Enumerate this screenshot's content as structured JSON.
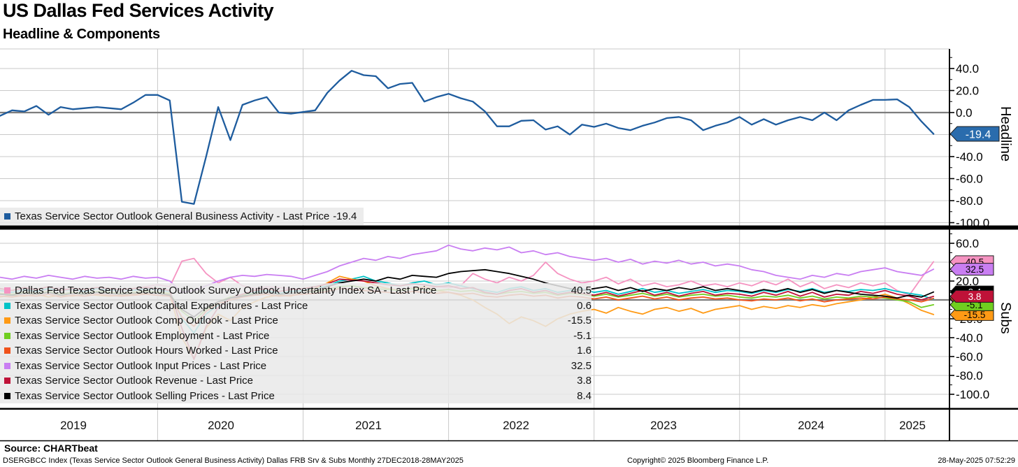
{
  "header": {
    "title": "US Dallas Fed Services Activity",
    "subtitle": "Headline & Components"
  },
  "x_axis": {
    "years": [
      "2019",
      "2020",
      "2021",
      "2022",
      "2023",
      "2024",
      "2025"
    ]
  },
  "headline_panel": {
    "axis_label": "Headline",
    "legend": {
      "label": "Texas Service Sector Outlook General Business Activity - Last Price",
      "value": "-19.4",
      "marker_color": "#1e5c9e"
    },
    "badge": {
      "text": "-19.4",
      "fill": "#2a6cad",
      "text_color": "#ffffff"
    }
  },
  "subs_panel": {
    "axis_label": "Subs",
    "legend_rows": [
      {
        "label": "Dallas Fed Texas Service Sector Outlook Survey Outlook Uncertainty Index SA - Last Price",
        "value": "40.5",
        "color": "#f593c1"
      },
      {
        "label": "Texas Service Sector Outlook Capital Expenditures - Last Price",
        "value": "0.6",
        "color": "#00c3c7"
      },
      {
        "label": "Texas Service Sector Outlook Comp Outlook - Last Price",
        "value": "-15.5",
        "color": "#ff9a15"
      },
      {
        "label": "Texas Service Sector Outlook Employment - Last Price",
        "value": "-5.1",
        "color": "#70ce20"
      },
      {
        "label": "Texas Service Sector Outlook Hours Worked - Last Price",
        "value": "1.6",
        "color": "#f0521b"
      },
      {
        "label": "Texas Service Sector Outlook Input Prices - Last Price",
        "value": "32.5",
        "color": "#c97ef2"
      },
      {
        "label": "Texas Service Sector Outlook Revenue - Last Price",
        "value": "3.8",
        "color": "#bf1238"
      },
      {
        "label": "Texas Service Sector Outlook Selling Prices - Last Price",
        "value": "8.4",
        "color": "#000000"
      }
    ]
  },
  "footer": {
    "source": "Source: CHARTbeat",
    "disclaimer": "DSERGBCC Index (Texas Service Sector Outlook General Business Activity) Dallas FRB Srv & Subs  Monthly 27DEC2018-28MAY2025",
    "copyright": "Copyright© 2025 Bloomberg Finance L.P.",
    "timestamp": "28-May-2025 07:52:29"
  },
  "chart_data": [
    {
      "type": "line",
      "panel": "Headline",
      "x_start": "27DEC2018",
      "x_end": "28MAY2025",
      "x_freq": "monthly",
      "ylim": [
        -105,
        57
      ],
      "yticks": [
        40,
        20,
        0,
        -20,
        -40,
        -60,
        -80,
        -100
      ],
      "grid": true,
      "legend_position": "bottom-left",
      "series": [
        {
          "name": "Texas Service Sector Outlook General Business Activity",
          "color": "#1e5c9e",
          "last": -19.4,
          "badge_fill": "#2a6cad",
          "badge_text_color": "#ffffff",
          "values": [
            -3,
            2,
            1,
            6,
            -2,
            5,
            3,
            4,
            5,
            4,
            3,
            9,
            16,
            16,
            11,
            -81,
            -83,
            -40,
            5,
            -25,
            7,
            11,
            14,
            0,
            -1,
            0.5,
            2,
            18,
            29,
            38,
            34,
            33,
            22,
            26,
            27,
            10,
            14,
            17,
            13,
            10,
            1,
            -12.5,
            -12.5,
            -7.5,
            -7,
            -15.5,
            -12.5,
            -20,
            -11,
            -13,
            -10,
            -14,
            -16,
            -12,
            -9,
            -5,
            -4,
            -7,
            -16,
            -12,
            -9,
            -4,
            -11,
            -6,
            -11,
            -7,
            -4,
            -7,
            0,
            -7,
            2,
            7,
            11.5,
            11.5,
            12,
            5,
            -8,
            -19.4
          ]
        }
      ]
    },
    {
      "type": "line",
      "panel": "Subs",
      "x_start": "27DEC2018",
      "x_end": "28MAY2025",
      "x_freq": "monthly",
      "ylim": [
        -116,
        73
      ],
      "yticks": [
        60,
        40,
        20,
        0,
        -20,
        -40,
        -60,
        -80,
        -100
      ],
      "grid": true,
      "legend_position": "middle-left",
      "series": [
        {
          "name": "Dallas Fed Texas Service Sector Outlook Survey Outlook Uncertainty Index SA",
          "color": "#f593c1",
          "last": 40.5,
          "badge_text_color": "#000000",
          "values": [
            10,
            8,
            12,
            9,
            11,
            13,
            10,
            9,
            12,
            10,
            11,
            12,
            14,
            16,
            14,
            41,
            44,
            28,
            18,
            24,
            15,
            12,
            14,
            13,
            12,
            10,
            9,
            12,
            14,
            11,
            13,
            10,
            12,
            11,
            13,
            12,
            14,
            13,
            15,
            28,
            22,
            18,
            24,
            20,
            26,
            40,
            28,
            22,
            18,
            20,
            24,
            17,
            22,
            15,
            18,
            14,
            16,
            20,
            15,
            17,
            14,
            18,
            15,
            20,
            16,
            22,
            14,
            19,
            12,
            16,
            13,
            18,
            15,
            18,
            10,
            5,
            23,
            40.5
          ]
        },
        {
          "name": "Texas Service Sector Outlook Capital Expenditures",
          "color": "#00c3c7",
          "last": 0.6,
          "badge_text_color": "#000000",
          "values": [
            10,
            8,
            11,
            9,
            12,
            10,
            11,
            9,
            12,
            10,
            11,
            10,
            12,
            11,
            9,
            -20,
            -35,
            -15,
            -5,
            2,
            5,
            8,
            10,
            7,
            9,
            10,
            12,
            15,
            20,
            22,
            25,
            20,
            18,
            15,
            18,
            20,
            16,
            18,
            15,
            12,
            10,
            8,
            12,
            14,
            10,
            12,
            8,
            10,
            12,
            8,
            10,
            6,
            9,
            12,
            8,
            10,
            7,
            9,
            11,
            8,
            10,
            9,
            7,
            10,
            8,
            11,
            9,
            12,
            8,
            10,
            9,
            11,
            10,
            12,
            9,
            7,
            5,
            0.6
          ]
        },
        {
          "name": "Texas Service Sector Outlook Comp Outlook",
          "color": "#ff9a15",
          "last": -15.5,
          "badge_text_color": "#000000",
          "values": [
            3,
            5,
            4,
            6,
            3,
            5,
            4,
            6,
            5,
            4,
            5,
            6,
            7,
            8,
            6,
            -40,
            -62,
            -30,
            -15,
            -22,
            -8,
            -2,
            3,
            5,
            4,
            8,
            12,
            18,
            25,
            22,
            20,
            15,
            12,
            10,
            12,
            14,
            10,
            8,
            5,
            0,
            -8,
            -15,
            -25,
            -18,
            -22,
            -28,
            -20,
            -15,
            -12,
            -10,
            -14,
            -8,
            -12,
            -15,
            -10,
            -8,
            -12,
            -9,
            -14,
            -10,
            -8,
            -6,
            -10,
            -7,
            -9,
            -6,
            -8,
            -5,
            -7,
            -4,
            -2,
            0,
            3,
            6,
            2,
            -4,
            -11,
            -15.5
          ]
        },
        {
          "name": "Texas Service Sector Outlook Employment",
          "color": "#70ce20",
          "last": -5.1,
          "badge_text_color": "#000000",
          "values": [
            7,
            6,
            8,
            7,
            9,
            6,
            8,
            7,
            9,
            8,
            7,
            8,
            9,
            8,
            7,
            -12,
            -22,
            -10,
            -2,
            3,
            5,
            7,
            8,
            6,
            7,
            8,
            9,
            11,
            14,
            15,
            13,
            12,
            11,
            10,
            12,
            11,
            10,
            11,
            9,
            10,
            7,
            6,
            8,
            9,
            7,
            8,
            5,
            7,
            6,
            4,
            6,
            3,
            5,
            7,
            4,
            6,
            3,
            5,
            6,
            4,
            5,
            3,
            2,
            4,
            3,
            5,
            2,
            4,
            1,
            3,
            2,
            4,
            3,
            2,
            0,
            -2,
            -8,
            -5.1
          ]
        },
        {
          "name": "Texas Service Sector Outlook Hours Worked",
          "color": "#f0521b",
          "last": 1.6,
          "badge_text_color": "#000000",
          "values": [
            4,
            3,
            5,
            4,
            6,
            3,
            5,
            4,
            6,
            5,
            4,
            5,
            6,
            5,
            4,
            -18,
            -28,
            -12,
            -4,
            0,
            3,
            5,
            6,
            4,
            5,
            6,
            7,
            9,
            12,
            11,
            10,
            9,
            8,
            7,
            9,
            8,
            7,
            8,
            6,
            7,
            4,
            3,
            5,
            6,
            4,
            5,
            2,
            4,
            3,
            1,
            3,
            0,
            2,
            4,
            1,
            3,
            0,
            2,
            3,
            1,
            2,
            0,
            -1,
            1,
            0,
            2,
            -1,
            1,
            -2,
            0,
            1,
            2,
            1,
            3,
            1,
            0,
            -2,
            1.6
          ]
        },
        {
          "name": "Texas Service Sector Outlook Input Prices",
          "color": "#c97ef2",
          "last": 32.5,
          "badge_text_color": "#000000",
          "values": [
            24,
            22,
            25,
            23,
            26,
            24,
            22,
            25,
            23,
            24,
            22,
            25,
            23,
            24,
            20,
            8,
            10,
            15,
            20,
            24,
            26,
            25,
            27,
            26,
            25,
            22,
            26,
            30,
            36,
            40,
            44,
            42,
            46,
            44,
            48,
            50,
            52,
            58,
            54,
            52,
            55,
            53,
            56,
            50,
            52,
            48,
            50,
            46,
            44,
            42,
            44,
            40,
            43,
            38,
            41,
            39,
            42,
            38,
            40,
            36,
            38,
            36,
            32,
            30,
            26,
            24,
            22,
            26,
            24,
            28,
            26,
            30,
            32,
            34,
            30,
            28,
            26,
            32.5
          ]
        },
        {
          "name": "Texas Service Sector Outlook Revenue",
          "color": "#bf1238",
          "last": 3.8,
          "badge_text_color": "#ffffff",
          "values": [
            12,
            10,
            13,
            11,
            14,
            10,
            12,
            11,
            13,
            12,
            11,
            12,
            13,
            12,
            10,
            -30,
            -63,
            -28,
            -8,
            2,
            6,
            10,
            12,
            9,
            11,
            12,
            14,
            17,
            22,
            21,
            20,
            18,
            16,
            15,
            17,
            16,
            14,
            15,
            12,
            13,
            8,
            6,
            10,
            12,
            8,
            10,
            6,
            8,
            7,
            5,
            8,
            4,
            7,
            10,
            5,
            8,
            4,
            7,
            9,
            5,
            7,
            6,
            4,
            8,
            5,
            9,
            4,
            8,
            3,
            6,
            5,
            9,
            7,
            10,
            6,
            4,
            0,
            3.8
          ]
        },
        {
          "name": "Texas Service Sector Outlook Selling Prices",
          "color": "#000000",
          "last": 8.4,
          "badge_text_color": "#ffffff",
          "values": [
            6,
            5,
            7,
            6,
            8,
            5,
            7,
            6,
            8,
            7,
            6,
            7,
            8,
            7,
            5,
            -10,
            -18,
            -8,
            -2,
            2,
            4,
            6,
            8,
            6,
            7,
            8,
            10,
            14,
            18,
            20,
            22,
            20,
            24,
            22,
            26,
            25,
            24,
            28,
            30,
            31,
            32,
            30,
            28,
            25,
            22,
            18,
            15,
            12,
            10,
            12,
            14,
            10,
            13,
            9,
            12,
            10,
            13,
            11,
            14,
            10,
            12,
            10,
            8,
            11,
            9,
            12,
            8,
            11,
            7,
            10,
            8,
            6,
            5,
            4,
            2,
            5,
            3,
            8.4
          ]
        }
      ]
    }
  ]
}
